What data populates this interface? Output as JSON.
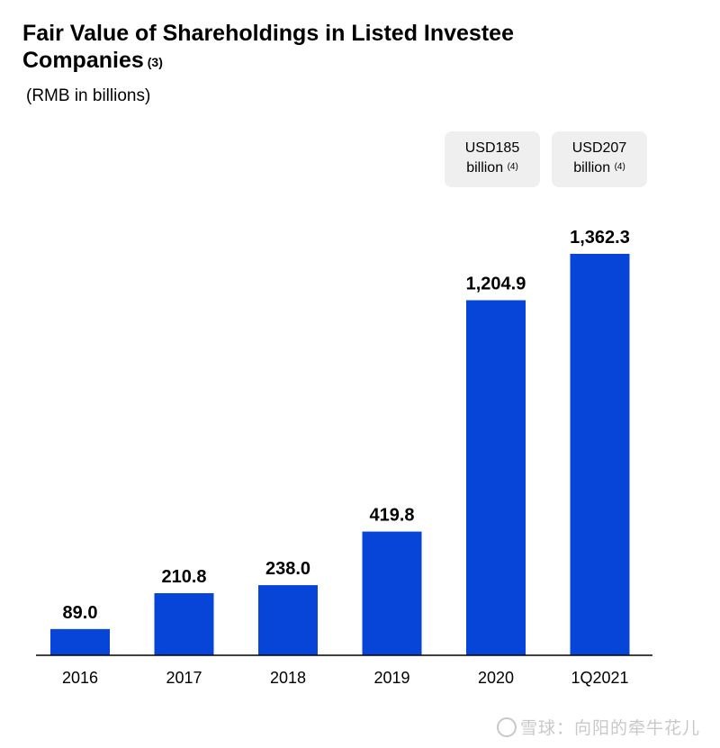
{
  "chart_data": {
    "type": "bar",
    "title": "Fair Value of Shareholdings  in Listed Investee Companies",
    "title_footnote": "(3)",
    "subtitle": "(RMB in billions)",
    "categories": [
      "2016",
      "2017",
      "2018",
      "2019",
      "2020",
      "1Q2021"
    ],
    "values": [
      89.0,
      210.8,
      238.0,
      419.8,
      1204.9,
      1362.3
    ],
    "value_labels": [
      "89.0",
      "210.8",
      "238.0",
      "419.8",
      "1,204.9",
      "1,362.3"
    ],
    "bar_color": "#0645d8",
    "ylim": [
      0,
      1362.3
    ],
    "xlabel": "",
    "ylabel": "",
    "annotations": [
      {
        "category": "2020",
        "line1": "USD185",
        "line2": "billion",
        "footnote": "(4)"
      },
      {
        "category": "1Q2021",
        "line1": "USD207",
        "line2": "billion",
        "footnote": "(4)"
      }
    ]
  },
  "watermark": "雪球：向阳的牵牛花儿"
}
